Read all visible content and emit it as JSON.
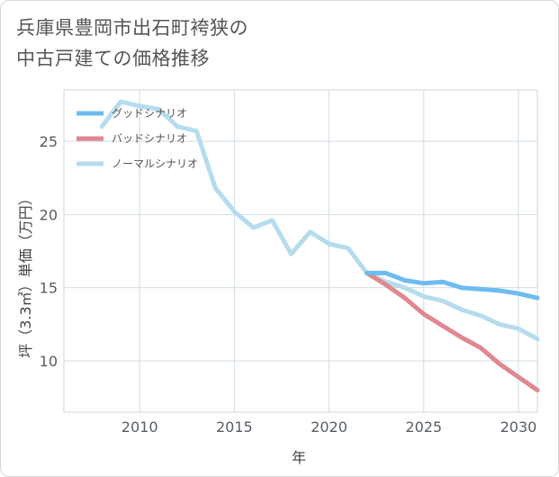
{
  "title_lines": [
    "兵庫県豊岡市出石町袴狭の",
    "中古戸建ての価格推移"
  ],
  "chart_data": {
    "type": "line",
    "title": "兵庫県豊岡市出石町袴狭の中古戸建ての価格推移",
    "xlabel": "年",
    "ylabel": "坪（3.3㎡）単価（万円）",
    "xlim": [
      2006,
      2031
    ],
    "ylim": [
      6.5,
      28.5
    ],
    "xticks": [
      2010,
      2015,
      2020,
      2025,
      2030
    ],
    "yticks": [
      10,
      15,
      20,
      25
    ],
    "grid": true,
    "legend_position": "top-left",
    "series": [
      {
        "name": "グッドシナリオ",
        "color": "#6dbcf0",
        "x": [
          2022,
          2023,
          2024,
          2025,
          2026,
          2027,
          2028,
          2029,
          2030,
          2031
        ],
        "values": [
          16.0,
          16.0,
          15.5,
          15.3,
          15.4,
          15.0,
          14.9,
          14.8,
          14.6,
          14.3
        ]
      },
      {
        "name": "バッドシナリオ",
        "color": "#e0878f",
        "x": [
          2022,
          2023,
          2024,
          2025,
          2026,
          2027,
          2028,
          2029,
          2030,
          2031
        ],
        "values": [
          16.0,
          15.2,
          14.3,
          13.2,
          12.4,
          11.6,
          10.9,
          9.8,
          8.9,
          8.0
        ]
      },
      {
        "name": "ノーマルシナリオ",
        "color": "#b5dcee",
        "x": [
          2008,
          2009,
          2010,
          2011,
          2012,
          2013,
          2014,
          2015,
          2016,
          2017,
          2018,
          2019,
          2020,
          2021,
          2022,
          2023,
          2024,
          2025,
          2026,
          2027,
          2028,
          2029,
          2030,
          2031
        ],
        "values": [
          26.0,
          27.7,
          27.4,
          27.2,
          26.0,
          25.7,
          21.8,
          20.2,
          19.1,
          19.6,
          17.3,
          18.8,
          18.0,
          17.7,
          16.0,
          15.4,
          15.0,
          14.4,
          14.1,
          13.5,
          13.1,
          12.5,
          12.2,
          11.5
        ]
      }
    ]
  }
}
